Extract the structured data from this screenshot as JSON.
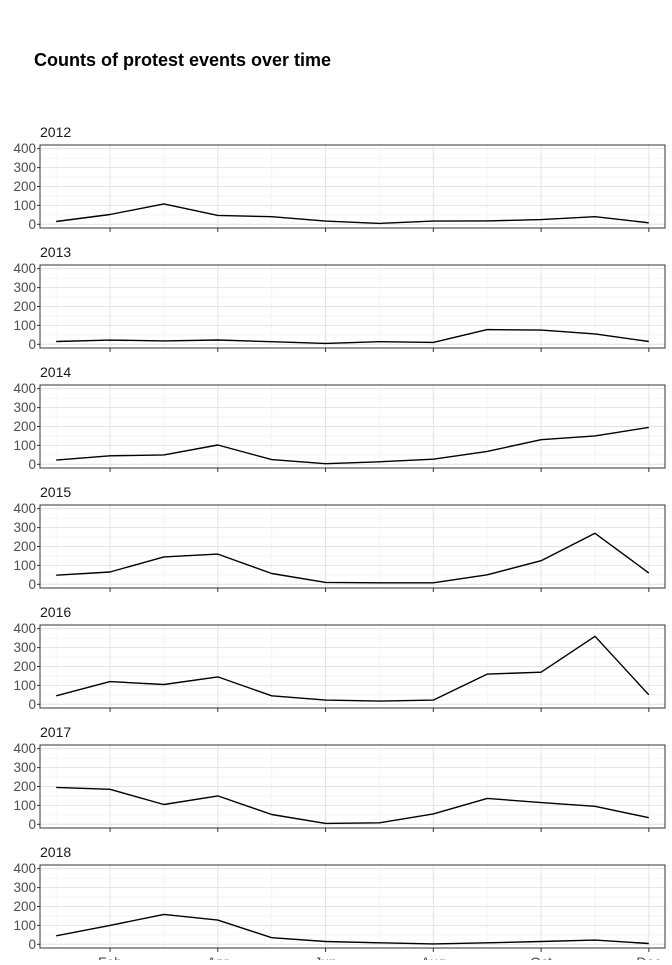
{
  "chart_data": {
    "type": "line",
    "title": "Counts of protest events over time",
    "xlabel": "",
    "ylabel": "",
    "ylim": [
      0,
      400
    ],
    "y_ticks": [
      "0",
      "100",
      "200",
      "300",
      "400"
    ],
    "x_tick_labels": [
      "Feb",
      "Apr",
      "Jun",
      "Aug",
      "Oct",
      "Dec"
    ],
    "x_tick_months": [
      2,
      4,
      6,
      8,
      10,
      12
    ],
    "months": [
      1,
      2,
      3,
      4,
      5,
      6,
      7,
      8,
      9,
      10,
      11,
      12
    ],
    "line_color": "#000000",
    "grid": true,
    "facets": [
      {
        "label": "2012",
        "values": [
          15,
          52,
          108,
          47,
          40,
          17,
          5,
          17,
          18,
          25,
          40,
          8
        ]
      },
      {
        "label": "2013",
        "values": [
          15,
          22,
          18,
          23,
          14,
          5,
          14,
          10,
          78,
          75,
          55,
          15
        ]
      },
      {
        "label": "2014",
        "values": [
          22,
          45,
          50,
          102,
          25,
          3,
          13,
          27,
          68,
          130,
          150,
          195
        ]
      },
      {
        "label": "2015",
        "values": [
          48,
          65,
          145,
          160,
          57,
          10,
          8,
          8,
          50,
          125,
          270,
          60
        ]
      },
      {
        "label": "2016",
        "values": [
          45,
          120,
          105,
          145,
          45,
          22,
          17,
          22,
          160,
          170,
          360,
          50
        ]
      },
      {
        "label": "2017",
        "values": [
          195,
          185,
          105,
          150,
          52,
          5,
          8,
          55,
          137,
          115,
          95,
          35
        ]
      },
      {
        "label": "2018",
        "values": [
          45,
          100,
          158,
          128,
          35,
          15,
          8,
          2,
          8,
          15,
          22,
          4
        ]
      }
    ]
  }
}
